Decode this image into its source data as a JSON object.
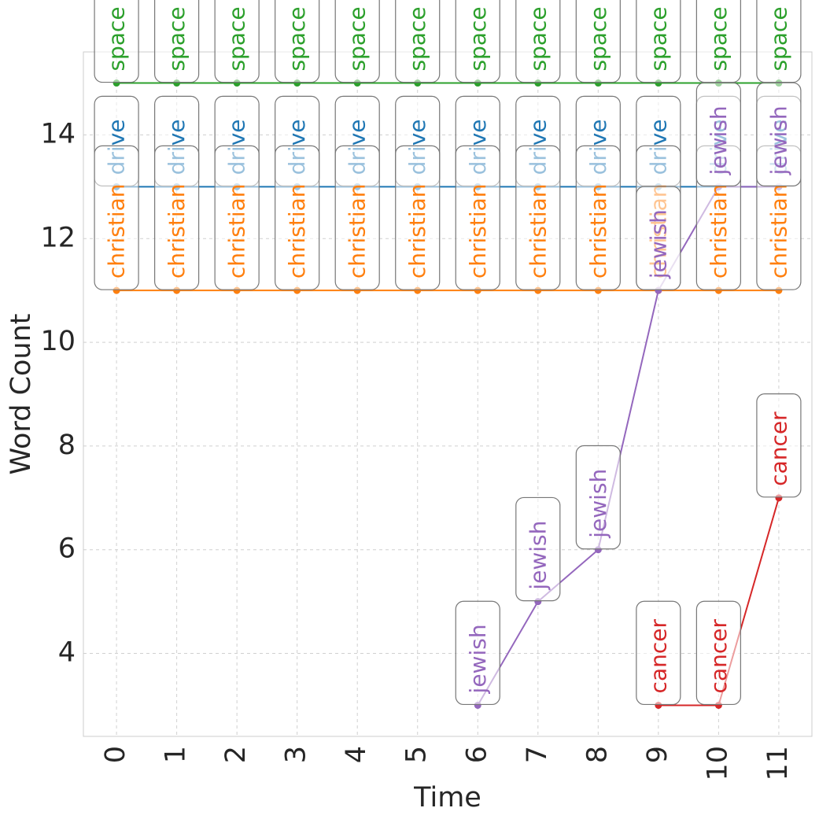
{
  "chart_data": {
    "type": "line",
    "xlabel": "Time",
    "ylabel": "Word Count",
    "x": [
      0,
      1,
      2,
      3,
      4,
      5,
      6,
      7,
      8,
      9,
      10,
      11
    ],
    "xlim": [
      -0.55,
      11.55
    ],
    "ylim": [
      2.4,
      15.6
    ],
    "yticks": [
      4,
      6,
      8,
      10,
      12,
      14
    ],
    "grid": true,
    "series": [
      {
        "name": "space",
        "color": "#2ca02c",
        "points": [
          [
            0,
            15
          ],
          [
            1,
            15
          ],
          [
            2,
            15
          ],
          [
            3,
            15
          ],
          [
            4,
            15
          ],
          [
            5,
            15
          ],
          [
            6,
            15
          ],
          [
            7,
            15
          ],
          [
            8,
            15
          ],
          [
            9,
            15
          ],
          [
            10,
            15
          ],
          [
            11,
            15
          ]
        ]
      },
      {
        "name": "drive",
        "color": "#1f77b4",
        "points": [
          [
            0,
            13
          ],
          [
            1,
            13
          ],
          [
            2,
            13
          ],
          [
            3,
            13
          ],
          [
            4,
            13
          ],
          [
            5,
            13
          ],
          [
            6,
            13
          ],
          [
            7,
            13
          ],
          [
            8,
            13
          ],
          [
            9,
            13
          ],
          [
            10,
            13
          ],
          [
            11,
            13
          ]
        ]
      },
      {
        "name": "christian",
        "color": "#ff7f0e",
        "points": [
          [
            0,
            11
          ],
          [
            1,
            11
          ],
          [
            2,
            11
          ],
          [
            3,
            11
          ],
          [
            4,
            11
          ],
          [
            5,
            11
          ],
          [
            6,
            11
          ],
          [
            7,
            11
          ],
          [
            8,
            11
          ],
          [
            9,
            11
          ],
          [
            10,
            11
          ],
          [
            11,
            11
          ]
        ]
      },
      {
        "name": "jewish",
        "color": "#9467bd",
        "points": [
          [
            6,
            3
          ],
          [
            7,
            5
          ],
          [
            8,
            6
          ],
          [
            9,
            11
          ],
          [
            10,
            13
          ],
          [
            11,
            13
          ]
        ]
      },
      {
        "name": "cancer",
        "color": "#d62728",
        "points": [
          [
            9,
            3
          ],
          [
            10,
            3
          ],
          [
            11,
            7
          ]
        ]
      }
    ]
  }
}
